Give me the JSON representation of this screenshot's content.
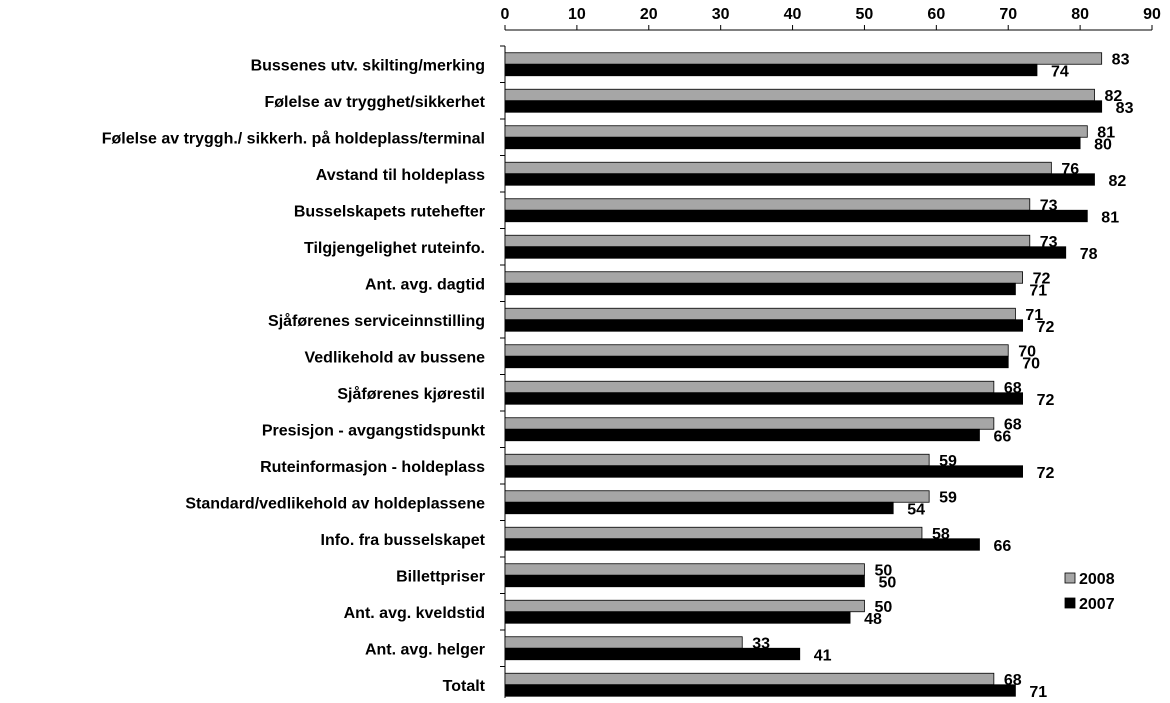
{
  "chart_data": {
    "type": "hbar",
    "categories": [
      "Bussenes utv. skilting/merking",
      "Følelse av trygghet/sikkerhet",
      "Følelse av tryggh./ sikkerh. på holdeplass/terminal",
      "Avstand til holdeplass",
      "Busselskapets rutehefter",
      "Tilgjengelighet ruteinfo.",
      "Ant. avg. dagtid",
      "Sjåførenes serviceinnstilling",
      "Vedlikehold av bussene",
      "Sjåførenes kjørestil",
      "Presisjon - avgangstidspunkt",
      "Ruteinformasjon - holdeplass",
      "Standard/vedlikehold av holdeplassene",
      "Info. fra busselskapet",
      "Billettpriser",
      "Ant. avg. kveldstid",
      "Ant. avg. helger",
      "Totalt"
    ],
    "series": [
      {
        "name": "2008",
        "color": "#a6a6a6",
        "values": [
          83,
          82,
          81,
          76,
          73,
          73,
          72,
          71,
          70,
          68,
          68,
          59,
          59,
          58,
          50,
          50,
          33,
          68
        ]
      },
      {
        "name": "2007",
        "color": "#000000",
        "values": [
          74,
          83,
          80,
          82,
          81,
          78,
          71,
          72,
          70,
          72,
          66,
          72,
          54,
          66,
          50,
          48,
          41,
          71
        ]
      }
    ],
    "xlim": [
      0,
      90
    ],
    "xticks": [
      0,
      10,
      20,
      30,
      40,
      50,
      60,
      70,
      80,
      90
    ],
    "legend": "lower right"
  }
}
